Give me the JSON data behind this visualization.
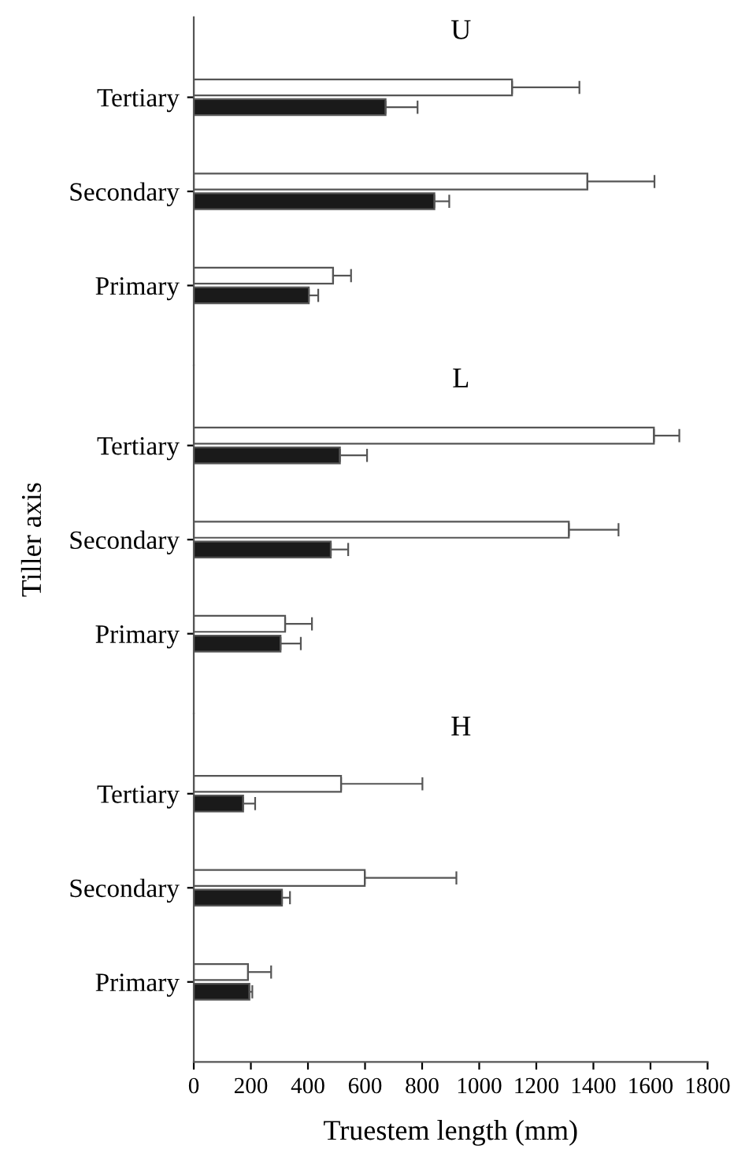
{
  "chart_data": [
    {
      "type": "bar",
      "orientation": "horizontal",
      "title": "U",
      "categories": [
        "Tertiary",
        "Secondary",
        "Primary"
      ],
      "xlim": [
        0,
        1800
      ],
      "xticks": [
        0,
        200,
        400,
        600,
        800,
        1000,
        1200,
        1400,
        1600,
        1800
      ],
      "tick_labels": "y",
      "legend": false,
      "grid": false,
      "series": [
        {
          "color": "#ffffff",
          "values": [
            1115,
            1379,
            488
          ],
          "errors": [
            236,
            235,
            63
          ]
        },
        {
          "color": "#1a1a1a",
          "values": [
            672,
            843,
            403
          ],
          "errors": [
            112,
            52,
            33
          ]
        }
      ]
    },
    {
      "type": "bar",
      "orientation": "horizontal",
      "title": "L",
      "ylabel": "Tiller axis",
      "categories": [
        "Tertiary",
        "Secondary",
        "Primary"
      ],
      "xlim": [
        0,
        1800
      ],
      "xticks": [
        0,
        200,
        400,
        600,
        800,
        1000,
        1200,
        1400,
        1600,
        1800
      ],
      "tick_labels": "y",
      "legend": false,
      "grid": false,
      "series": [
        {
          "color": "#ffffff",
          "values": [
            1612,
            1314,
            320
          ],
          "errors": [
            89,
            174,
            94
          ]
        },
        {
          "color": "#1a1a1a",
          "values": [
            512,
            480,
            304
          ],
          "errors": [
            95,
            61,
            71
          ]
        }
      ]
    },
    {
      "type": "bar",
      "orientation": "horizontal",
      "title": "H",
      "xlabel": "Truestem length (mm)",
      "categories": [
        "Tertiary",
        "Secondary",
        "Primary"
      ],
      "xlim": [
        0,
        1800
      ],
      "xticks": [
        0,
        200,
        400,
        600,
        800,
        1000,
        1200,
        1400,
        1600,
        1800
      ],
      "legend": false,
      "grid": false,
      "series": [
        {
          "color": "#ffffff",
          "values": [
            516,
            599,
            190
          ],
          "errors": [
            285,
            321,
            81
          ]
        },
        {
          "color": "#1a1a1a",
          "values": [
            173,
            309,
            195
          ],
          "errors": [
            42,
            28,
            10
          ]
        }
      ]
    }
  ]
}
